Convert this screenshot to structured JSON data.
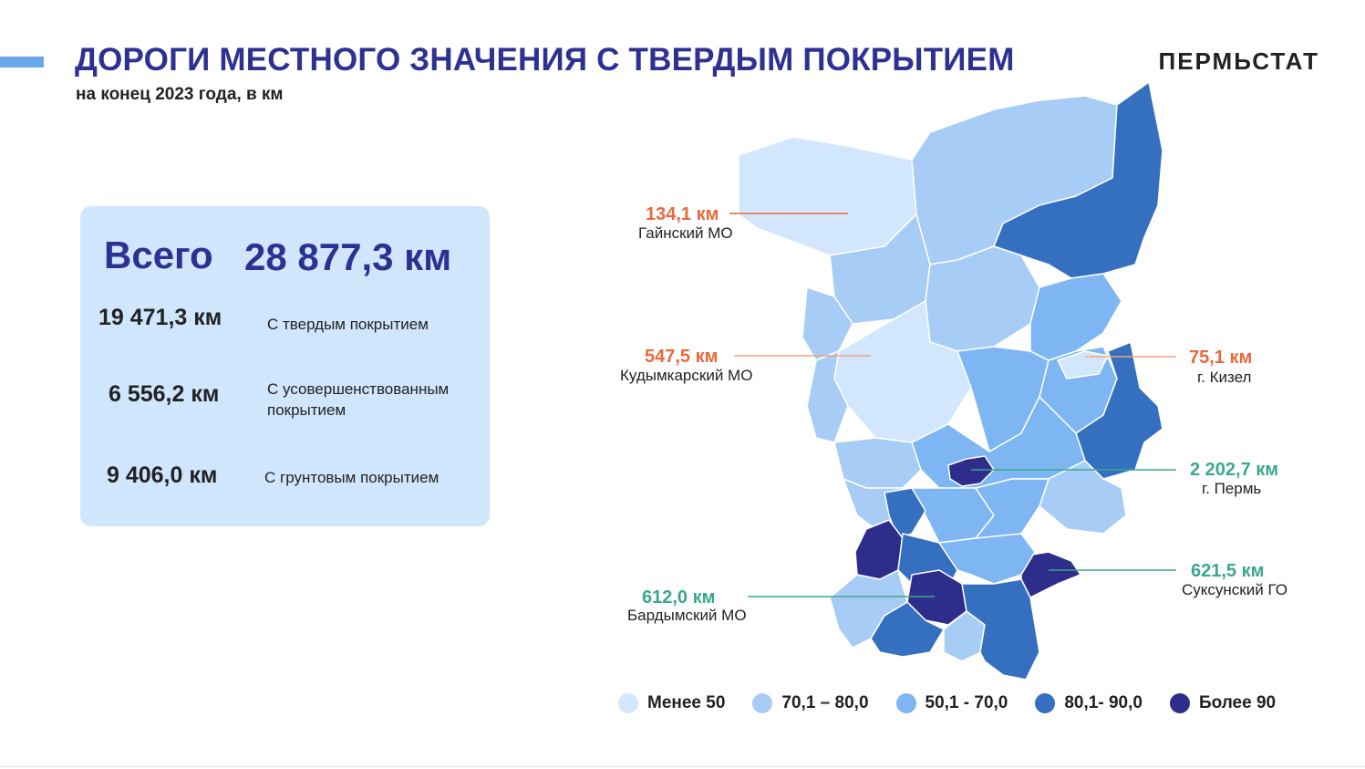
{
  "header": {
    "title": "ДОРОГИ МЕСТНОГО ЗНАЧЕНИЯ С ТВЕРДЫМ ПОКРЫТИЕМ",
    "subtitle": "на конец 2023 года, в км",
    "brand": "ПЕРМЬСТАТ"
  },
  "summary": {
    "total_label": "Всего",
    "total_value": "28 877,3 км",
    "rows": [
      {
        "value": "19 471,3 км",
        "label": "С твердым покрытием"
      },
      {
        "value": "6 556,2 км",
        "label": "С усовершенствованным покрытием"
      },
      {
        "value": "9 406,0 км",
        "label": "С грунтовым покрытием"
      }
    ]
  },
  "callouts": [
    {
      "value": "134,1 км",
      "name": "Гайнский МО",
      "color": "#e86a3c"
    },
    {
      "value": "547,5 км",
      "name": "Кудымкарский МО",
      "color": "#e86a3c"
    },
    {
      "value": "75,1 км",
      "name": "г. Кизел",
      "color": "#e86a3c"
    },
    {
      "value": "2 202,7 км",
      "name": "г. Пермь",
      "color": "#3aa88f"
    },
    {
      "value": "621,5 км",
      "name": "Суксунский ГО",
      "color": "#3aa88f"
    },
    {
      "value": "612,0 км",
      "name": "Бардымский МО",
      "color": "#3aa88f"
    }
  ],
  "legend": [
    {
      "label": "Менее 50",
      "color": "#d2e7fd"
    },
    {
      "label": "70,1 – 80,0",
      "color": "#a7cdf7"
    },
    {
      "label": "50,1 - 70,0",
      "color": "#7db6f3"
    },
    {
      "label": "80,1- 90,0",
      "color": "#356fc0"
    },
    {
      "label": "Более 90",
      "color": "#2e2d8c"
    }
  ],
  "colors": {
    "accent": "#6aa9e9",
    "title": "#2e3192",
    "panel": "#cfe6fd"
  }
}
